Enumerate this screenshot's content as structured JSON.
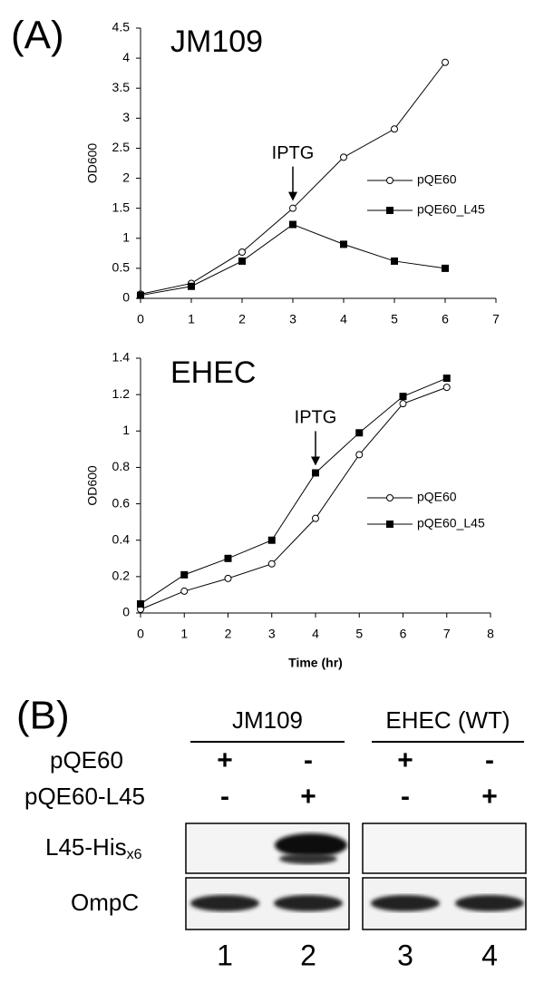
{
  "panel_a_label": "(A)",
  "chart_data": [
    {
      "type": "line",
      "title": "JM109",
      "ylabel": "OD600",
      "x": [
        0,
        1,
        2,
        3,
        4,
        5,
        6
      ],
      "series": [
        {
          "name": "pQE60",
          "color": "#000000",
          "marker": "circle",
          "values": [
            0.07,
            0.25,
            0.77,
            1.5,
            2.35,
            2.82,
            3.93
          ]
        },
        {
          "name": "pQE60_L45",
          "color": "#000000",
          "marker": "square",
          "values": [
            0.05,
            0.2,
            0.62,
            1.23,
            0.9,
            0.62,
            0.5
          ]
        }
      ],
      "xlim": [
        0,
        7
      ],
      "xticks": [
        0,
        1,
        2,
        3,
        4,
        5,
        6,
        7
      ],
      "ylim": [
        0,
        4.5
      ],
      "yticks": [
        0,
        0.5,
        1,
        1.5,
        2,
        2.5,
        3,
        3.5,
        4,
        4.5
      ],
      "annotations": [
        {
          "text": "IPTG",
          "x": 3
        }
      ]
    },
    {
      "type": "line",
      "title": "EHEC",
      "ylabel": "OD600",
      "xlabel": "Time (hr)",
      "x": [
        0,
        1,
        2,
        3,
        4,
        5,
        6,
        7
      ],
      "series": [
        {
          "name": "pQE60",
          "color": "#000000",
          "marker": "circle",
          "values": [
            0.02,
            0.12,
            0.19,
            0.27,
            0.52,
            0.87,
            1.15,
            1.24
          ]
        },
        {
          "name": "pQE60_L45",
          "color": "#000000",
          "marker": "square",
          "values": [
            0.05,
            0.21,
            0.3,
            0.4,
            0.77,
            0.99,
            1.19,
            1.29
          ]
        }
      ],
      "xlim": [
        0,
        8
      ],
      "xticks": [
        0,
        1,
        2,
        3,
        4,
        5,
        6,
        7,
        8
      ],
      "ylim": [
        0,
        1.4
      ],
      "yticks": [
        0,
        0.2,
        0.4,
        0.6,
        0.8,
        1,
        1.2,
        1.4
      ],
      "annotations": [
        {
          "text": "IPTG",
          "x": 4
        }
      ]
    }
  ],
  "panel_b": {
    "label": "(B)",
    "groups": [
      "JM109",
      "EHEC (WT)"
    ],
    "rows": [
      {
        "name": "pQE60",
        "values": [
          "+",
          "-",
          "+",
          "-"
        ]
      },
      {
        "name": "pQE60-L45",
        "values": [
          "-",
          "+",
          "-",
          "+"
        ]
      }
    ],
    "blots": [
      {
        "name": "L45-His",
        "subscript": "x6"
      },
      {
        "name": "OmpC"
      }
    ],
    "lanes": [
      "1",
      "2",
      "3",
      "4"
    ]
  }
}
